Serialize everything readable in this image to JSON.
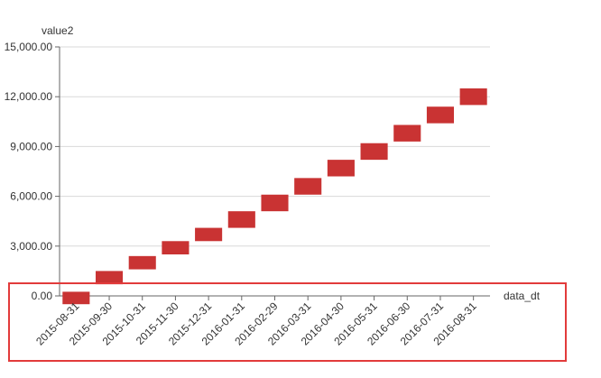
{
  "chart_data": {
    "type": "bar",
    "subtype": "floating-range",
    "xlabel": "data_dt",
    "ylabel": "value2",
    "ylim": [
      0,
      15000
    ],
    "yticks": [
      0,
      3000,
      6000,
      9000,
      12000,
      15000
    ],
    "ytick_labels": [
      "0.00",
      "3,000.00",
      "6,000.00",
      "9,000.00",
      "12,000.00",
      "15,000.00"
    ],
    "grid": true,
    "categories": [
      "2015-08-31",
      "2015-09-30",
      "2015-10-31",
      "2015-11-30",
      "2015-12-31",
      "2016-01-31",
      "2016-02-29",
      "2016-03-31",
      "2016-04-30",
      "2016-05-31",
      "2016-06-30",
      "2016-07-31",
      "2016-08-31"
    ],
    "series": [
      {
        "values": [
          [
            -500,
            250
          ],
          [
            700,
            1500
          ],
          [
            1600,
            2400
          ],
          [
            2500,
            3300
          ],
          [
            3300,
            4100
          ],
          [
            4100,
            5100
          ],
          [
            5100,
            6100
          ],
          [
            6100,
            7100
          ],
          [
            7200,
            8200
          ],
          [
            8200,
            9200
          ],
          [
            9300,
            10300
          ],
          [
            10400,
            11400
          ],
          [
            11500,
            12500
          ]
        ]
      }
    ],
    "colors": {
      "bar": "#c93333",
      "highlight_box": "#e23b3b"
    }
  }
}
